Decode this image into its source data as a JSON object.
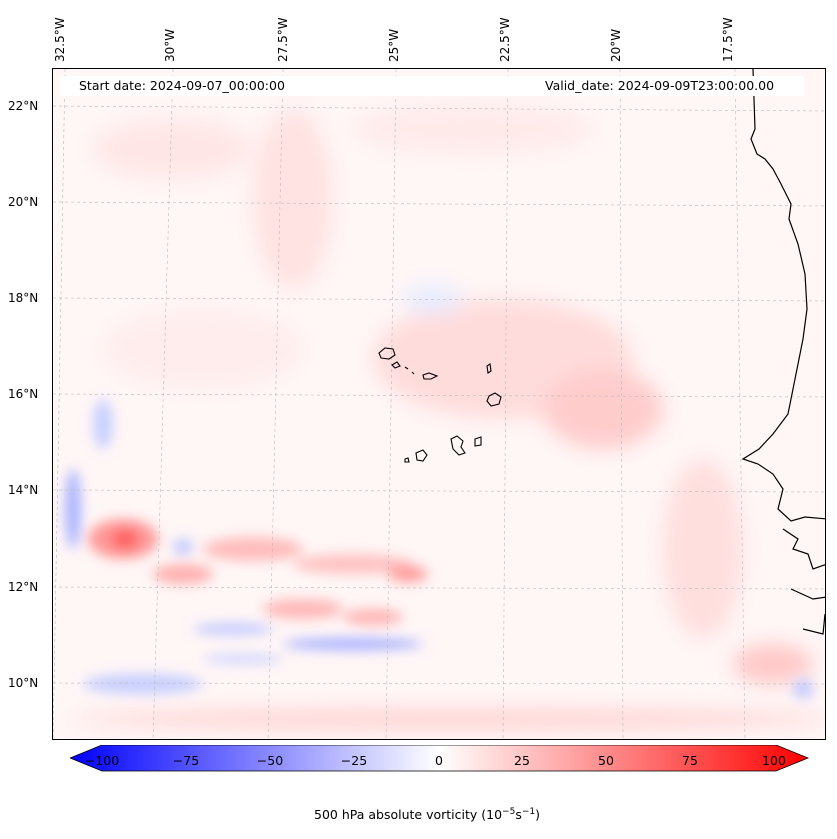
{
  "map": {
    "start_date": "Start date: 2024-09-07_00:00:00",
    "valid_date": "Valid_date: 2024-09-09T23:00:00.00",
    "lon_ticks": [
      "32.5°W",
      "30°W",
      "27.5°W",
      "25°W",
      "22.5°W",
      "20°W",
      "17.5°W"
    ],
    "lat_ticks": [
      "22°N",
      "20°N",
      "18°N",
      "16°N",
      "14°N",
      "12°N",
      "10°N"
    ],
    "gridlines": "dashed",
    "field": "500 hPa absolute vorticity",
    "coastline_color": "#000000"
  },
  "colorbar": {
    "ticks": [
      "−100",
      "−75",
      "−50",
      "−25",
      "0",
      "25",
      "50",
      "75",
      "100"
    ],
    "label_main": "500 hPa absolute vorticity (10",
    "label_exp1": "−5",
    "label_mid": "s",
    "label_exp2": "−1",
    "label_end": ")",
    "colormap": "bwr",
    "min_color": "#0000ff",
    "mid_color": "#ffffff",
    "max_color": "#ff0000"
  }
}
